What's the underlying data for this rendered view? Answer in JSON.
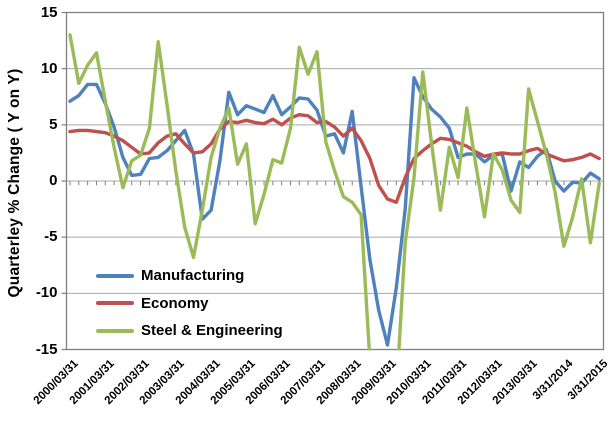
{
  "chart_data": {
    "type": "line",
    "title": "",
    "y_axis": {
      "title": "Quarterley % Change ( Y on Y)",
      "min": -15,
      "max": 15,
      "tick_interval": 5,
      "tick_labels": [
        "15",
        "10",
        "5",
        "0",
        "-5",
        "-10",
        "-15"
      ]
    },
    "x_axis": {
      "frequency": "quarterly",
      "minor_ticks_per_label": 4,
      "tick_labels": [
        "2000/03/31",
        "2001/03/31",
        "2002/03/31",
        "2003/03/31",
        "2004/03/31",
        "2005/03/31",
        "2006/03/31",
        "2007/03/31",
        "2008/03/31",
        "2009/03/31",
        "2010/03/31",
        "2011/03/31",
        "2012/03/31",
        "2013/03/31",
        "3/31/2014",
        "3/31/2015"
      ]
    },
    "grid": "horizontal",
    "legend_position": "inside-lower-left",
    "note": "values beyond y-range are clipped at plot edge",
    "colors": {
      "grid": "#A8A8A8",
      "border": "#7F7F7F",
      "tick": "#7F7F7F",
      "background": "#FFFFFF"
    },
    "series": [
      {
        "name": "Manufacturing",
        "color": "#4F81BD",
        "values": [
          7.1,
          7.6,
          8.6,
          8.6,
          6.9,
          4.8,
          2.1,
          0.5,
          0.6,
          2.0,
          2.1,
          2.7,
          3.6,
          4.5,
          2.4,
          -3.4,
          -2.6,
          1.8,
          7.9,
          5.9,
          6.7,
          6.4,
          6.1,
          7.6,
          5.9,
          6.6,
          7.4,
          7.3,
          6.3,
          4.0,
          4.2,
          2.5,
          6.2,
          -0.5,
          -7.0,
          -11.5,
          -14.6,
          -9.5,
          -2.5,
          9.2,
          7.5,
          6.4,
          5.7,
          4.7,
          2.1,
          2.4,
          2.4,
          1.7,
          2.3,
          2.4,
          -0.9,
          1.7,
          1.2,
          2.2,
          2.8,
          0.0,
          -0.9,
          -0.1,
          -0.2,
          0.7,
          0.2
        ]
      },
      {
        "name": "Economy",
        "color": "#C0504D",
        "values": [
          4.4,
          4.5,
          4.5,
          4.4,
          4.3,
          4.0,
          3.6,
          3.0,
          2.4,
          2.5,
          3.4,
          4.0,
          4.2,
          3.3,
          2.5,
          2.6,
          3.3,
          4.6,
          5.3,
          5.2,
          5.4,
          5.2,
          5.1,
          5.5,
          5.0,
          5.6,
          5.9,
          5.8,
          5.2,
          5.3,
          4.8,
          4.0,
          4.7,
          3.6,
          2.0,
          -0.4,
          -1.6,
          -1.9,
          0.3,
          2.0,
          2.7,
          3.3,
          3.8,
          3.7,
          3.4,
          3.1,
          2.6,
          2.2,
          2.4,
          2.5,
          2.4,
          2.4,
          2.7,
          2.9,
          2.4,
          2.1,
          1.8,
          1.9,
          2.1,
          2.4,
          2.0
        ]
      },
      {
        "name": "Steel & Engineering",
        "color": "#9BBB59",
        "values": [
          13.0,
          8.7,
          10.3,
          11.4,
          7.1,
          3.0,
          -0.6,
          1.8,
          2.3,
          4.7,
          12.4,
          6.8,
          0.9,
          -4.1,
          -6.8,
          -2.6,
          2.1,
          4.7,
          6.5,
          1.5,
          3.3,
          -3.8,
          -1.2,
          1.9,
          1.6,
          4.7,
          11.9,
          9.5,
          11.5,
          3.5,
          0.9,
          -1.4,
          -1.9,
          -3.0,
          -16.0,
          -21.0,
          -22.0,
          -19.0,
          -5.5,
          0.3,
          9.7,
          3.3,
          -2.6,
          3.0,
          0.3,
          6.5,
          1.5,
          -3.2,
          2.4,
          1.0,
          -1.7,
          -2.8,
          8.2,
          5.3,
          2.4,
          -1.0,
          -5.8,
          -3.2,
          0.2,
          -5.5,
          -0.2
        ]
      }
    ]
  }
}
